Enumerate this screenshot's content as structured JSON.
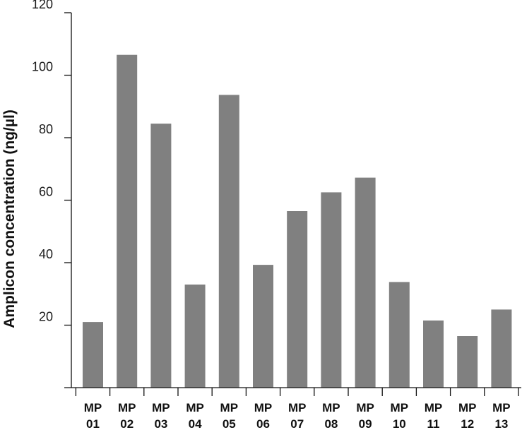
{
  "chart_data": {
    "type": "bar",
    "ylabel": "Amplicon concentration (ng/µl)",
    "xlabel": "",
    "categories": [
      [
        "MP",
        "01"
      ],
      [
        "MP",
        "02"
      ],
      [
        "MP",
        "03"
      ],
      [
        "MP",
        "04"
      ],
      [
        "MP",
        "05"
      ],
      [
        "MP",
        "06"
      ],
      [
        "MP",
        "07"
      ],
      [
        "MP",
        "08"
      ],
      [
        "MP",
        "09"
      ],
      [
        "MP",
        "10"
      ],
      [
        "MP",
        "11"
      ],
      [
        "MP",
        "12"
      ],
      [
        "MP",
        "13"
      ]
    ],
    "values": [
      21,
      106.5,
      84.5,
      33,
      93.7,
      39.3,
      56.5,
      62.5,
      67.2,
      33.8,
      21.5,
      16.5,
      25
    ],
    "ylim": [
      0,
      120
    ],
    "yticks": [
      20,
      40,
      60,
      80,
      100,
      120
    ],
    "grid": false,
    "legend": "none",
    "bar_color": "#808080"
  }
}
